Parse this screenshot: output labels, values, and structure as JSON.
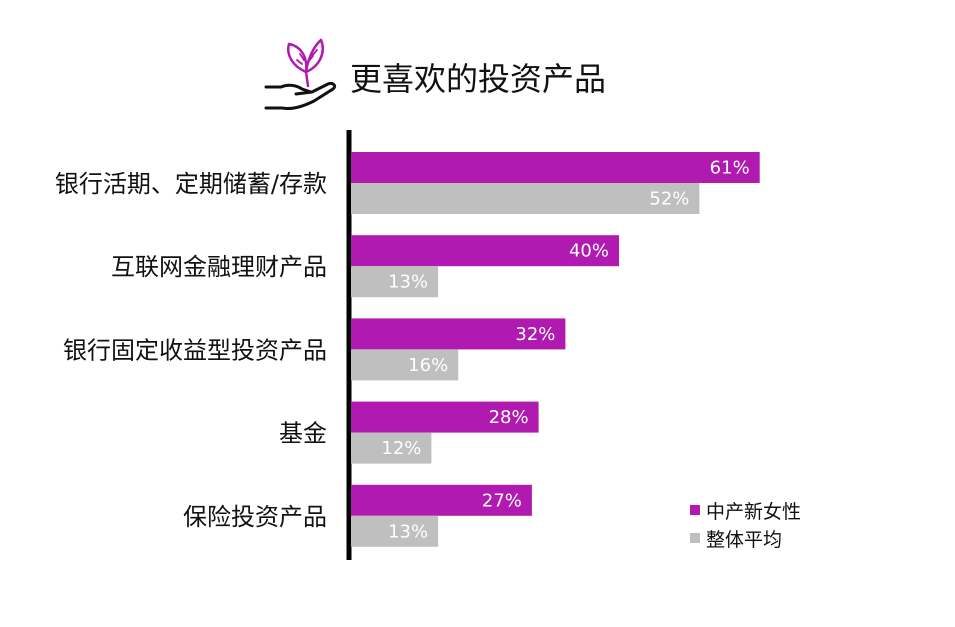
{
  "title": "更喜欢的投资产品",
  "icon": "plant-in-hand-icon",
  "colors": {
    "series1": "#b11ab0",
    "series2": "#bfbfbf",
    "axis": "#000000",
    "text": "#111111",
    "icon_leaf": "#b11ab0",
    "icon_hand": "#111111"
  },
  "legend": {
    "items": [
      {
        "label": "中产新女性"
      },
      {
        "label": "整体平均"
      }
    ]
  },
  "chart_data": {
    "type": "bar",
    "orientation": "horizontal",
    "title": "更喜欢的投资产品",
    "categories": [
      "银行活期、定期储蓄/存款",
      "互联网金融理财产品",
      "银行固定收益型投资产品",
      "基金",
      "保险投资产品"
    ],
    "series": [
      {
        "name": "中产新女性",
        "values": [
          61,
          40,
          32,
          28,
          27
        ]
      },
      {
        "name": "整体平均",
        "values": [
          52,
          13,
          16,
          12,
          13
        ]
      }
    ],
    "value_suffix": "%",
    "xlim": [
      0,
      100
    ],
    "grid": false,
    "legend_position": "bottom-right"
  }
}
